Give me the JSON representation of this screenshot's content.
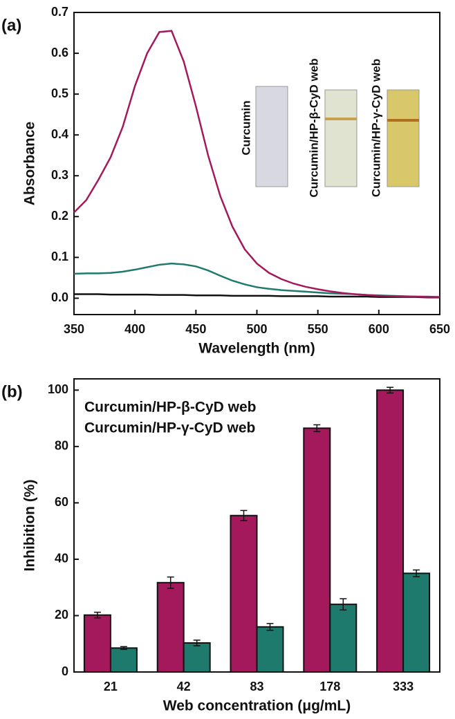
{
  "chart_data": [
    {
      "type": "line",
      "panel_label": "(a)",
      "xlabel": "Wavelength (nm)",
      "ylabel": "Absorbance",
      "xlim": [
        350,
        650
      ],
      "xticks": [
        350,
        400,
        450,
        500,
        550,
        600,
        650
      ],
      "ylim": [
        -0.04,
        0.7
      ],
      "yticks": [
        {
          "value": 0,
          "label": "0.0"
        },
        0.1,
        0.2,
        0.3,
        0.4,
        0.5,
        0.6,
        0.7
      ],
      "annotations": [
        "Curcumin",
        "Curcumin/HP-β-CyD web",
        "Curcumin/HP-γ-CyD web"
      ],
      "x": [
        350,
        360,
        370,
        380,
        390,
        400,
        410,
        420,
        430,
        440,
        450,
        460,
        470,
        480,
        490,
        500,
        510,
        520,
        530,
        540,
        550,
        560,
        570,
        580,
        590,
        600,
        610,
        620,
        630,
        640,
        650
      ],
      "series": [
        {
          "name": "Curcumin",
          "color": "#111111",
          "values": [
            0.01,
            0.01,
            0.01,
            0.009,
            0.009,
            0.009,
            0.009,
            0.008,
            0.008,
            0.008,
            0.007,
            0.007,
            0.007,
            0.006,
            0.006,
            0.006,
            0.006,
            0.005,
            0.005,
            0.005,
            0.005,
            0.004,
            0.004,
            0.004,
            0.004,
            0.003,
            0.003,
            0.003,
            0.003,
            0.002,
            0.002
          ]
        },
        {
          "name": "Curcumin/HP-β-CyD web",
          "color": "#1f7a6e",
          "values": [
            0.06,
            0.061,
            0.061,
            0.062,
            0.065,
            0.07,
            0.076,
            0.082,
            0.085,
            0.083,
            0.078,
            0.068,
            0.055,
            0.043,
            0.034,
            0.027,
            0.023,
            0.02,
            0.018,
            0.016,
            0.014,
            0.012,
            0.011,
            0.01,
            0.008,
            0.007,
            0.006,
            0.005,
            0.004,
            0.004,
            0.003
          ]
        },
        {
          "name": "Curcumin/HP-γ-CyD web",
          "color": "#a3195b",
          "values": [
            0.21,
            0.24,
            0.29,
            0.345,
            0.42,
            0.52,
            0.6,
            0.652,
            0.655,
            0.58,
            0.47,
            0.35,
            0.25,
            0.175,
            0.12,
            0.085,
            0.062,
            0.047,
            0.036,
            0.028,
            0.022,
            0.017,
            0.013,
            0.01,
            0.008,
            0.006,
            0.005,
            0.004,
            0.004,
            0.003,
            0.003
          ]
        }
      ]
    },
    {
      "type": "bar",
      "panel_label": "(b)",
      "xlabel": "Web concentration (μg/mL)",
      "ylabel": "Inhibition (%)",
      "categories": [
        "21",
        "42",
        "83",
        "178",
        "333"
      ],
      "ylim": [
        0,
        104
      ],
      "yticks": [
        0,
        20,
        40,
        60,
        80,
        100
      ],
      "series": [
        {
          "name": "Curcumin/HP-β-CyD web",
          "color": "#1f7a6e",
          "values": [
            8.5,
            10.3,
            16,
            24,
            35
          ],
          "errors": [
            0.5,
            1,
            1.2,
            2,
            1.2
          ]
        },
        {
          "name": "Curcumin/HP-γ-CyD web",
          "color": "#a3195b",
          "values": [
            20.2,
            31.7,
            55.5,
            86.5,
            100
          ],
          "errors": [
            1,
            2,
            1.8,
            1.2,
            1
          ]
        }
      ]
    }
  ]
}
